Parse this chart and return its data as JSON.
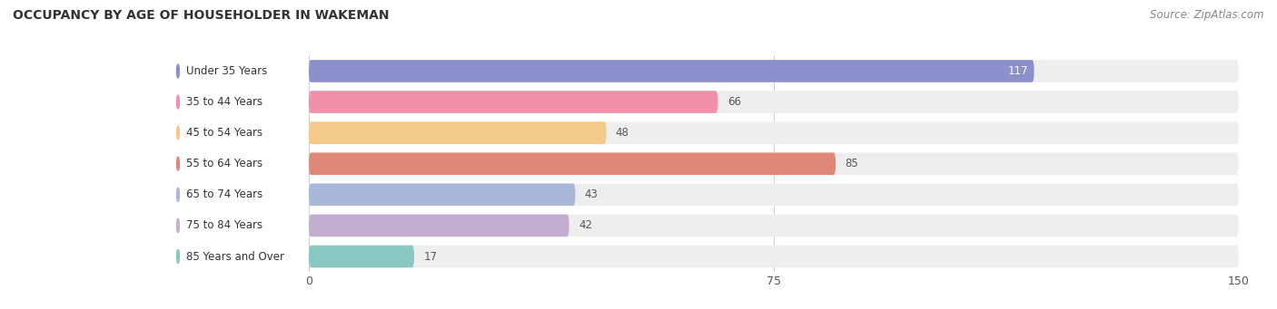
{
  "title": "OCCUPANCY BY AGE OF HOUSEHOLDER IN WAKEMAN",
  "source": "Source: ZipAtlas.com",
  "categories": [
    "Under 35 Years",
    "35 to 44 Years",
    "45 to 54 Years",
    "55 to 64 Years",
    "65 to 74 Years",
    "75 to 84 Years",
    "85 Years and Over"
  ],
  "values": [
    117,
    66,
    48,
    85,
    43,
    42,
    17
  ],
  "bar_colors": [
    "#8b8fcc",
    "#f090aa",
    "#f5c98a",
    "#e08878",
    "#a8b8d8",
    "#c4aed0",
    "#88c8c4"
  ],
  "bar_bg_color": "#eeeeee",
  "label_pill_color": "#ffffff",
  "xlim_max": 150,
  "xticks": [
    0,
    75,
    150
  ],
  "title_fontsize": 10,
  "source_fontsize": 8.5,
  "label_fontsize": 8.5,
  "value_fontsize": 8.5,
  "background_color": "#ffffff",
  "value_inside_color": "#ffffff",
  "value_outside_color": "#555555"
}
